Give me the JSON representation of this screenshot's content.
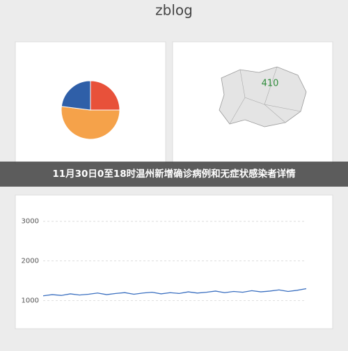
{
  "site": {
    "name": "zblog"
  },
  "banner": {
    "title": "11月30日0至18时温州新增确诊病例和无症状感染者详情"
  },
  "map": {
    "label": "410"
  },
  "chart_data": [
    {
      "type": "pie",
      "values": [
        25,
        52,
        23
      ],
      "colors": [
        "#e8513a",
        "#f5a24a",
        "#2f5fa8"
      ]
    },
    {
      "type": "line",
      "series": [
        {
          "color": "#3a6fc0",
          "values": [
            1120,
            1150,
            1130,
            1170,
            1140,
            1160,
            1190,
            1150,
            1180,
            1200,
            1160,
            1190,
            1210,
            1170,
            1200,
            1180,
            1220,
            1190,
            1210,
            1240,
            1200,
            1230,
            1210,
            1250,
            1220,
            1240,
            1270,
            1230,
            1260,
            1300
          ]
        }
      ],
      "ylim": [
        800,
        3100
      ],
      "yticks": [
        1000,
        2000,
        3000
      ],
      "grid": true
    }
  ]
}
